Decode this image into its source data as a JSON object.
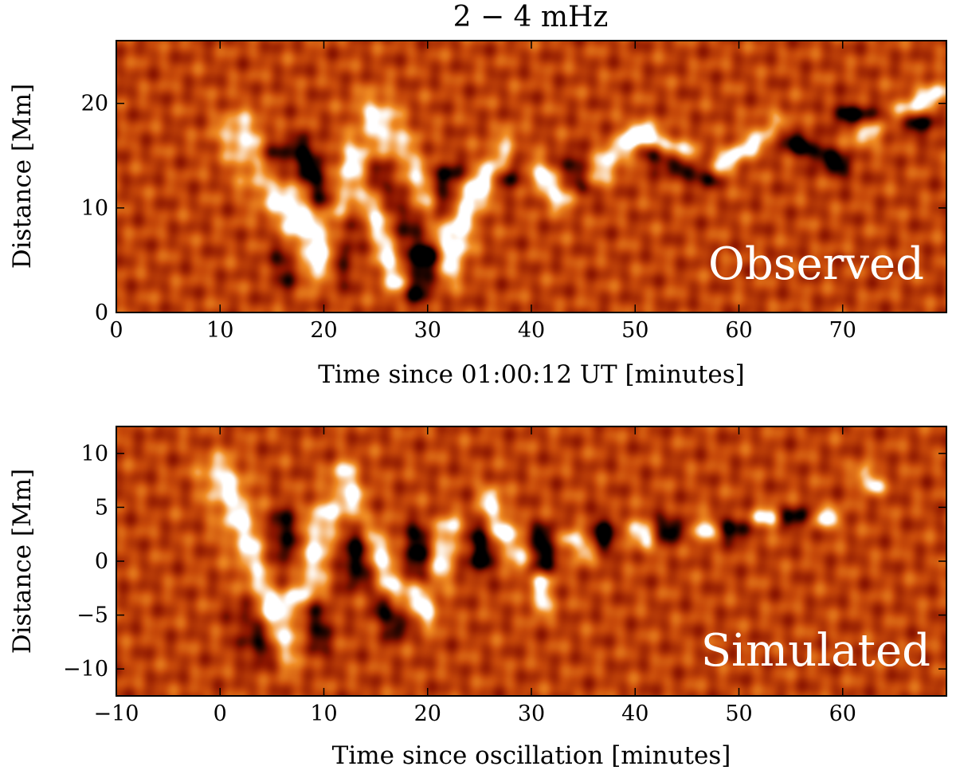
{
  "figure": {
    "title": "2 − 4 mHz"
  },
  "chart_data": [
    {
      "type": "heatmap",
      "panel_label": "Observed",
      "xlabel": "Time since 01:00:12 UT [minutes]",
      "ylabel": "Distance [Mm]",
      "xlim": [
        0,
        80
      ],
      "ylim": [
        0,
        26
      ],
      "xticks": [
        0,
        10,
        20,
        30,
        40,
        50,
        60,
        70
      ],
      "yticks": [
        0,
        10,
        20
      ],
      "xtick_labels": [
        "0",
        "10",
        "20",
        "30",
        "40",
        "50",
        "60",
        "70"
      ],
      "ytick_labels": [
        "0",
        "10",
        "20"
      ],
      "colormap": [
        "#000000",
        "#8b1500",
        "#c84a0a",
        "#f08c23",
        "#ffffff"
      ],
      "features": [
        {
          "kind": "bright",
          "t0": 12,
          "d0": 17,
          "t1": 17,
          "d1": 9,
          "w": 1.6
        },
        {
          "kind": "bright",
          "t0": 16,
          "d0": 11,
          "t1": 19,
          "d1": 4,
          "w": 1.4
        },
        {
          "kind": "bright",
          "t0": 23,
          "d0": 15,
          "t1": 20,
          "d1": 5,
          "w": 1.2
        },
        {
          "kind": "bright",
          "t0": 25,
          "d0": 19,
          "t1": 31,
          "d1": 8,
          "w": 1.4
        },
        {
          "kind": "bright",
          "t0": 27,
          "d0": 3,
          "t1": 25,
          "d1": 10,
          "w": 1.0
        },
        {
          "kind": "bright",
          "t0": 32,
          "d0": 4,
          "t1": 34,
          "d1": 11,
          "w": 1.0
        },
        {
          "kind": "bright",
          "t0": 35,
          "d0": 12,
          "t1": 38,
          "d1": 16,
          "w": 1.0
        },
        {
          "kind": "bright",
          "t0": 40,
          "d0": 14,
          "t1": 43,
          "d1": 11,
          "w": 1.0
        },
        {
          "kind": "bright",
          "t0": 46,
          "d0": 13,
          "t1": 50,
          "d1": 17,
          "w": 0.9
        },
        {
          "kind": "bright",
          "t0": 51,
          "d0": 17,
          "t1": 55,
          "d1": 15,
          "w": 0.8
        },
        {
          "kind": "bright",
          "t0": 58,
          "d0": 14,
          "t1": 64,
          "d1": 18,
          "w": 0.8
        },
        {
          "kind": "bright",
          "t0": 72,
          "d0": 17,
          "t1": 79,
          "d1": 21,
          "w": 0.9
        },
        {
          "kind": "dark",
          "t0": 15,
          "d0": 15,
          "t1": 17,
          "d1": 4,
          "w": 1.3
        },
        {
          "kind": "dark",
          "t0": 18,
          "d0": 15,
          "t1": 20,
          "d1": 11,
          "w": 1.2
        },
        {
          "kind": "dark",
          "t0": 22,
          "d0": 8,
          "t1": 21,
          "d1": 4,
          "w": 1.2
        },
        {
          "kind": "dark",
          "t0": 26,
          "d0": 14,
          "t1": 29,
          "d1": 6,
          "w": 1.2
        },
        {
          "kind": "dark",
          "t0": 32,
          "d0": 13,
          "t1": 31,
          "d1": 9,
          "w": 1.1
        },
        {
          "kind": "dark",
          "t0": 29,
          "d0": 2,
          "t1": 30,
          "d1": 5,
          "w": 1.0
        },
        {
          "kind": "dark",
          "t0": 38,
          "d0": 13,
          "t1": 39,
          "d1": 15,
          "w": 1.0
        },
        {
          "kind": "dark",
          "t0": 44,
          "d0": 14,
          "t1": 45,
          "d1": 12,
          "w": 0.9
        },
        {
          "kind": "dark",
          "t0": 52,
          "d0": 15,
          "t1": 57,
          "d1": 13,
          "w": 0.8
        },
        {
          "kind": "dark",
          "t0": 64,
          "d0": 17,
          "t1": 70,
          "d1": 14,
          "w": 0.8
        },
        {
          "kind": "dark",
          "t0": 70,
          "d0": 19,
          "t1": 78,
          "d1": 18,
          "w": 0.8
        }
      ]
    },
    {
      "type": "heatmap",
      "panel_label": "Simulated",
      "xlabel": "Time since oscillation [minutes]",
      "ylabel": "Distance [Mm]",
      "xlim": [
        -10,
        70
      ],
      "ylim": [
        -12.5,
        12.5
      ],
      "xticks": [
        -10,
        0,
        10,
        20,
        30,
        40,
        50,
        60
      ],
      "yticks": [
        -10,
        -5,
        0,
        5,
        10
      ],
      "xtick_labels": [
        "−10",
        "0",
        "10",
        "20",
        "30",
        "40",
        "50",
        "60"
      ],
      "ytick_labels": [
        "−10",
        "−5",
        "0",
        "5",
        "10"
      ],
      "colormap": [
        "#000000",
        "#8b1500",
        "#c84a0a",
        "#f08c23",
        "#ffffff"
      ],
      "features": [
        {
          "kind": "bright",
          "t0": 0,
          "d0": 8,
          "t1": 5,
          "d1": -3,
          "w": 1.4
        },
        {
          "kind": "bright",
          "t0": 5,
          "d0": -5,
          "t1": 7,
          "d1": -8,
          "w": 1.5
        },
        {
          "kind": "bright",
          "t0": 10,
          "d0": 4,
          "t1": 8,
          "d1": -3,
          "w": 1.3
        },
        {
          "kind": "bright",
          "t0": 12,
          "d0": 8,
          "t1": 13,
          "d1": 4,
          "w": 1.0
        },
        {
          "kind": "bright",
          "t0": 15,
          "d0": 2,
          "t1": 17,
          "d1": -3,
          "w": 1.0
        },
        {
          "kind": "bright",
          "t0": 19,
          "d0": -3,
          "t1": 20,
          "d1": -5,
          "w": 0.9
        },
        {
          "kind": "bright",
          "t0": 22,
          "d0": 3,
          "t1": 21,
          "d1": -1,
          "w": 1.0
        },
        {
          "kind": "bright",
          "t0": 26,
          "d0": 6,
          "t1": 27,
          "d1": 3,
          "w": 0.8
        },
        {
          "kind": "bright",
          "t0": 28,
          "d0": 2,
          "t1": 29,
          "d1": 0,
          "w": 0.8
        },
        {
          "kind": "bright",
          "t0": 31,
          "d0": -2,
          "t1": 31,
          "d1": -4,
          "w": 0.8
        },
        {
          "kind": "bright",
          "t0": 34,
          "d0": 2,
          "t1": 35,
          "d1": 1,
          "w": 0.8
        },
        {
          "kind": "bright",
          "t0": 40,
          "d0": 3,
          "t1": 41,
          "d1": 2,
          "w": 0.8
        },
        {
          "kind": "bright",
          "t0": 46,
          "d0": 3,
          "t1": 47,
          "d1": 3,
          "w": 0.8
        },
        {
          "kind": "bright",
          "t0": 52,
          "d0": 4,
          "t1": 53,
          "d1": 4,
          "w": 0.7
        },
        {
          "kind": "bright",
          "t0": 58,
          "d0": 4,
          "t1": 59,
          "d1": 4,
          "w": 0.7
        },
        {
          "kind": "bright",
          "t0": 62,
          "d0": 8,
          "t1": 63,
          "d1": 7,
          "w": 0.7
        },
        {
          "kind": "dark",
          "t0": 3,
          "d0": -5,
          "t1": 4,
          "d1": -8,
          "w": 1.2
        },
        {
          "kind": "dark",
          "t0": 6,
          "d0": 3,
          "t1": 6,
          "d1": -2,
          "w": 1.3
        },
        {
          "kind": "dark",
          "t0": 9,
          "d0": -5,
          "t1": 9,
          "d1": -8,
          "w": 1.1
        },
        {
          "kind": "dark",
          "t0": 13,
          "d0": 3,
          "t1": 13,
          "d1": -1,
          "w": 1.1
        },
        {
          "kind": "dark",
          "t0": 19,
          "d0": 2,
          "t1": 19,
          "d1": -1,
          "w": 1.1
        },
        {
          "kind": "dark",
          "t0": 16,
          "d0": -4,
          "t1": 17,
          "d1": -6,
          "w": 0.9
        },
        {
          "kind": "dark",
          "t0": 25,
          "d0": 2,
          "t1": 25,
          "d1": 0,
          "w": 1.0
        },
        {
          "kind": "dark",
          "t0": 31,
          "d0": 2,
          "t1": 31,
          "d1": 0,
          "w": 1.0
        },
        {
          "kind": "dark",
          "t0": 37,
          "d0": 3,
          "t1": 37,
          "d1": 2,
          "w": 0.9
        },
        {
          "kind": "dark",
          "t0": 43,
          "d0": 3,
          "t1": 44,
          "d1": 3,
          "w": 0.9
        },
        {
          "kind": "dark",
          "t0": 49,
          "d0": 3,
          "t1": 50,
          "d1": 3,
          "w": 0.8
        },
        {
          "kind": "dark",
          "t0": 55,
          "d0": 4,
          "t1": 56,
          "d1": 4,
          "w": 0.7
        }
      ]
    }
  ]
}
